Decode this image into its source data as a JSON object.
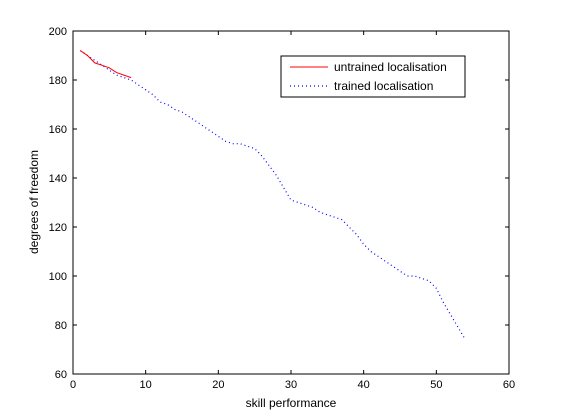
{
  "chart_data": {
    "type": "line",
    "xlabel": "skill performance",
    "ylabel": "degrees of freedom",
    "xlim": [
      0,
      60
    ],
    "ylim": [
      60,
      200
    ],
    "xticks": [
      0,
      10,
      20,
      30,
      40,
      50,
      60
    ],
    "yticks": [
      60,
      80,
      100,
      120,
      140,
      160,
      180,
      200
    ],
    "grid": false,
    "legend_position": "top-right",
    "series": [
      {
        "name": "untrained localisation",
        "color": "#ff0000",
        "style": "solid",
        "x": [
          1,
          2,
          3,
          4,
          5,
          6,
          7,
          8
        ],
        "y": [
          192,
          190,
          187,
          186,
          185,
          183,
          182,
          181
        ]
      },
      {
        "name": "trained localisation",
        "color": "#0000ff",
        "style": "dotted",
        "x": [
          1,
          2,
          3,
          4,
          5,
          6,
          7,
          8,
          9,
          10,
          11,
          12,
          13,
          14,
          15,
          16,
          17,
          18,
          19,
          20,
          21,
          22,
          23,
          24,
          25,
          26,
          27,
          28,
          29,
          30,
          31,
          32,
          33,
          34,
          35,
          36,
          37,
          38,
          39,
          40,
          41,
          42,
          43,
          44,
          45,
          46,
          47,
          48,
          49,
          50,
          51,
          52,
          53,
          54
        ],
        "y": [
          192,
          190,
          188,
          186,
          184,
          182,
          181,
          180,
          178,
          176,
          174,
          171,
          170,
          168,
          167,
          165,
          163,
          161,
          159,
          157,
          155,
          154,
          154,
          153,
          152,
          149,
          145,
          141,
          136,
          131,
          130,
          129,
          128,
          126,
          125,
          124,
          123,
          120,
          117,
          113,
          110,
          108,
          106,
          104,
          102,
          100,
          100,
          99,
          98,
          95,
          89,
          84,
          79,
          74
        ]
      }
    ]
  }
}
